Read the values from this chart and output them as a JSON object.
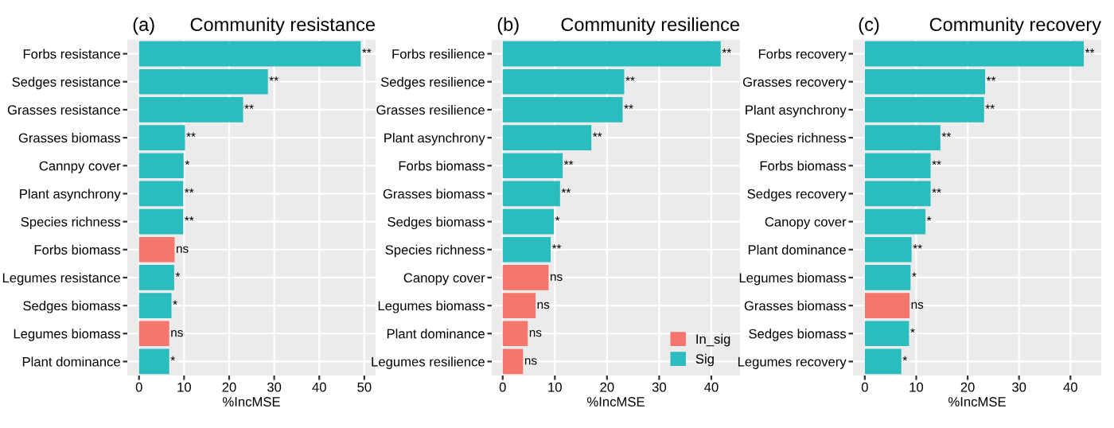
{
  "chart_data": [
    {
      "type": "bar",
      "orientation": "horizontal",
      "title": "Community resistance",
      "annotations": [
        "(a)"
      ],
      "xlabel": "%IncMSE",
      "categories": [
        "Forbs resistance",
        "Sedges resistance",
        "Grasses resistance",
        "Grasses biomass",
        "Cannpy cover",
        "Plant asynchrony",
        "Species richness",
        "Forbs biomass",
        "Legumes resistance",
        "Sedges biomass",
        "Legumes biomass",
        "Plant dominance"
      ],
      "values": [
        49.2,
        28.6,
        23.1,
        10.2,
        9.9,
        9.8,
        9.8,
        7.9,
        7.8,
        7.2,
        6.7,
        6.7
      ],
      "colors": [
        "#2bbdbd",
        "#2bbdbd",
        "#2bbdbd",
        "#2bbdbd",
        "#2bbdbd",
        "#2bbdbd",
        "#2bbdbd",
        "#f4766d",
        "#2bbdbd",
        "#2bbdbd",
        "#f4766d",
        "#2bbdbd"
      ],
      "value_labels": [
        "**",
        "**",
        "**",
        "**",
        "*",
        "**",
        "**",
        "ns",
        "*",
        "*",
        "ns",
        "*"
      ],
      "xlim": [
        -2.6,
        52.5
      ],
      "xticks": [
        0,
        10,
        20,
        30,
        40,
        50
      ],
      "grid": true,
      "legend": false
    },
    {
      "type": "bar",
      "orientation": "horizontal",
      "title": "Community resilience",
      "annotations": [
        "(b)"
      ],
      "xlabel": "%IncMSE",
      "categories": [
        "Forbs resilience",
        "Sedges resilience",
        "Grasses resilience",
        "Plant asynchrony",
        "Forbs biomass",
        "Grasses biomass",
        "Sedges biomass",
        "Species richness",
        "Canopy cover",
        "Legumes biomass",
        "Plant dominance",
        "Legumes resilience"
      ],
      "series": [
        {
          "name": "In_sig",
          "color": "#f4766d",
          "values": [
            null,
            null,
            null,
            null,
            null,
            null,
            null,
            null,
            8.8,
            6.3,
            4.8,
            3.9
          ],
          "value_labels": [
            null,
            null,
            null,
            null,
            null,
            null,
            null,
            null,
            "ns",
            "ns",
            "ns",
            "ns"
          ]
        },
        {
          "name": "Sig",
          "color": "#2bbdbd",
          "values": [
            41.8,
            23.3,
            23.0,
            17.0,
            11.5,
            11.0,
            9.8,
            9.2,
            null,
            null,
            null,
            null
          ],
          "value_labels": [
            "**",
            "**",
            "**",
            "**",
            "**",
            "**",
            "*",
            "**",
            null,
            null,
            null,
            null
          ]
        }
      ],
      "xlim": [
        -2.1,
        45.5
      ],
      "xticks": [
        0,
        10,
        20,
        30,
        40
      ],
      "grid": true,
      "legend": "bottom right"
    },
    {
      "type": "bar",
      "orientation": "horizontal",
      "title": "Community recovery",
      "annotations": [
        "(c)"
      ],
      "xlabel": "%IncMSE",
      "categories": [
        "Forbs recovery",
        "Grasses recovery",
        "Plant asynchrony",
        "Species richness",
        "Forbs biomass",
        "Sedges recovery",
        "Canopy cover",
        "Plant dominance",
        "Legumes biomass",
        "Grasses biomass",
        "Sedges biomass",
        "Legumes recovery"
      ],
      "values": [
        42.6,
        23.4,
        23.2,
        14.7,
        12.8,
        12.8,
        11.8,
        9.1,
        8.9,
        8.7,
        8.6,
        7.1
      ],
      "colors": [
        "#2bbdbd",
        "#2bbdbd",
        "#2bbdbd",
        "#2bbdbd",
        "#2bbdbd",
        "#2bbdbd",
        "#2bbdbd",
        "#2bbdbd",
        "#2bbdbd",
        "#f4766d",
        "#2bbdbd",
        "#2bbdbd"
      ],
      "value_labels": [
        "**",
        "**",
        "**",
        "**",
        "**",
        "**",
        "*",
        "**",
        "*",
        "ns",
        "*",
        "*"
      ],
      "xlim": [
        -2.3,
        46
      ],
      "xticks": [
        0,
        10,
        20,
        30,
        40
      ],
      "grid": true,
      "legend": false
    }
  ]
}
